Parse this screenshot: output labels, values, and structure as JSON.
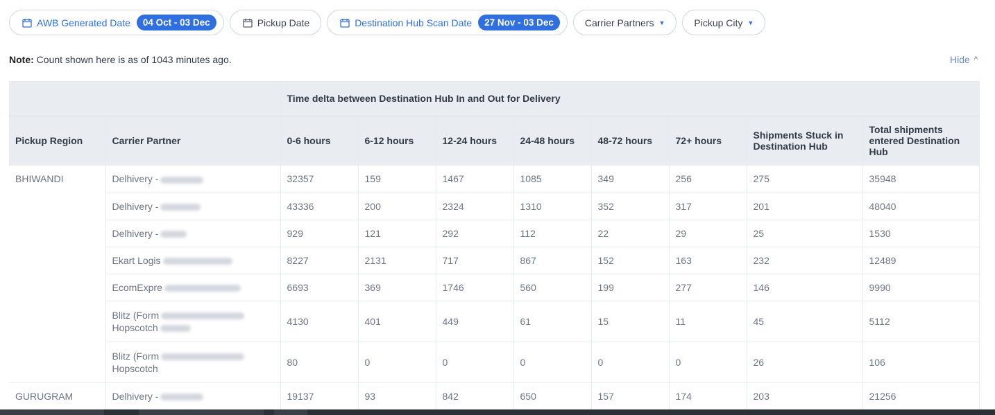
{
  "filters": {
    "awb": {
      "label": "AWB Generated Date",
      "value": "04 Oct - 03 Dec",
      "icon": "calendar-icon"
    },
    "pickup": {
      "label": "Pickup Date",
      "icon": "calendar-icon"
    },
    "dest": {
      "label": "Destination Hub Scan Date",
      "value": "27 Nov - 03 Dec",
      "icon": "calendar-icon"
    },
    "carrier": {
      "label": "Carrier Partners",
      "icon": "caret-down-icon"
    },
    "city": {
      "label": "Pickup City",
      "icon": "caret-down-icon"
    }
  },
  "note": {
    "bold": "Note:",
    "text": " Count shown here is as of 1043 minutes ago."
  },
  "hide": {
    "label": "Hide",
    "icon": "chevron-up-icon"
  },
  "table": {
    "group_header": "Time delta between Destination Hub In and Out for Delivery",
    "columns": [
      "Pickup Region",
      "Carrier Partner",
      "0-6 hours",
      "6-12 hours",
      "12-24 hours",
      "24-48 hours",
      "48-72 hours",
      "72+ hours",
      "Shipments Stuck in Destination Hub",
      "Total shipments entered Destination Hub"
    ],
    "regions": [
      {
        "name": "BHIWANDI",
        "rows": [
          {
            "carrier": "Delhivery -",
            "values": [
              "32357",
              "159",
              "1467",
              "1085",
              "349",
              "256",
              "275",
              "35948"
            ]
          },
          {
            "carrier": "Delhivery -",
            "values": [
              "43336",
              "200",
              "2324",
              "1310",
              "352",
              "317",
              "201",
              "48040"
            ]
          },
          {
            "carrier": "Delhivery -",
            "values": [
              "929",
              "121",
              "292",
              "112",
              "22",
              "29",
              "25",
              "1530"
            ]
          },
          {
            "carrier": "Ekart Logis",
            "values": [
              "8227",
              "2131",
              "717",
              "867",
              "152",
              "163",
              "232",
              "12489"
            ]
          },
          {
            "carrier": "EcomExpre",
            "values": [
              "6693",
              "369",
              "1746",
              "560",
              "199",
              "277",
              "146",
              "9990"
            ]
          },
          {
            "carrier": "Blitz (Form",
            "carrier2": "Hopscotch",
            "values": [
              "4130",
              "401",
              "449",
              "61",
              "15",
              "11",
              "45",
              "5112"
            ]
          },
          {
            "carrier": "Blitz (Form",
            "carrier2": "Hopscotch",
            "values": [
              "80",
              "0",
              "0",
              "0",
              "0",
              "0",
              "26",
              "106"
            ]
          }
        ]
      },
      {
        "name": "GURUGRAM",
        "rows": [
          {
            "carrier": "Delhivery -",
            "values": [
              "19137",
              "93",
              "842",
              "650",
              "157",
              "174",
              "203",
              "21256"
            ]
          }
        ]
      }
    ]
  }
}
